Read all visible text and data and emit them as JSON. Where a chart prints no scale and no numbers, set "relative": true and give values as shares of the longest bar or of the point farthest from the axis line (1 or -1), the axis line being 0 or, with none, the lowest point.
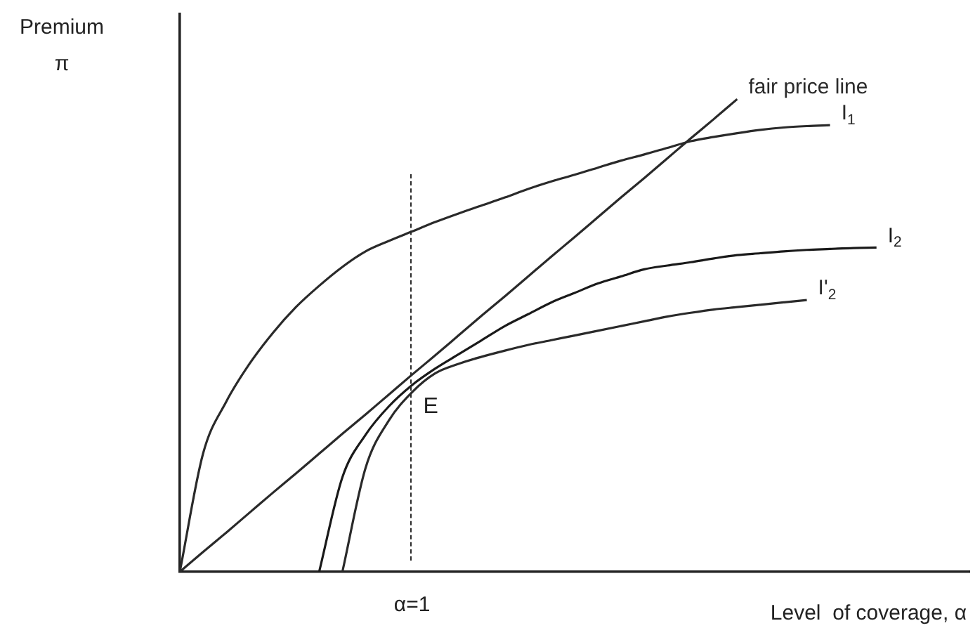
{
  "chart_data": {
    "type": "line",
    "relative": true,
    "xlabel": "Level  of coverage, α",
    "ylabel": "Premium\nπ",
    "categories": [
      null,
      null,
      null,
      null,
      null,
      null,
      null,
      null,
      null,
      null,
      null,
      null,
      null,
      null,
      null,
      null,
      null,
      null,
      null,
      null,
      null,
      null,
      null,
      null,
      null,
      null,
      null,
      null,
      null,
      null,
      null,
      null,
      null,
      null,
      null
    ],
    "series": [
      {
        "name": "fair price line",
        "color": "#2a2a2a",
        "values": [
          0,
          0.042,
          0.083,
          0.125,
          0.167,
          0.208,
          0.25,
          0.292,
          0.333,
          0.375,
          0.417,
          0.458,
          0.5,
          0.542,
          0.583,
          0.625,
          0.667,
          0.708,
          0.75,
          0.792,
          0.833,
          0.875,
          0.917,
          0.958,
          1,
          null,
          null,
          null,
          null,
          null,
          null,
          null,
          null,
          null,
          null
        ]
      },
      {
        "name": "I$_{1}$",
        "color": "#2a2a2a",
        "values": [
          0,
          0.25,
          0.36,
          0.44,
          0.505,
          0.56,
          0.605,
          0.645,
          0.678,
          0.7,
          0.72,
          0.74,
          0.758,
          0.775,
          0.792,
          0.81,
          0.826,
          0.84,
          0.855,
          0.87,
          0.883,
          0.897,
          0.911,
          0.92,
          0.928,
          0.935,
          0.94,
          0.943,
          0.945,
          null,
          null,
          null,
          null,
          null,
          null
        ]
      },
      {
        "name": "I$_{2}$",
        "color": "#1a1a1a",
        "values": [
          null,
          null,
          null,
          null,
          null,
          null,
          0,
          0.2,
          0.29,
          0.35,
          0.395,
          0.43,
          0.46,
          0.49,
          0.52,
          0.545,
          0.57,
          0.59,
          0.61,
          0.625,
          0.64,
          0.648,
          0.655,
          0.663,
          0.67,
          0.674,
          0.678,
          0.681,
          0.683,
          0.685,
          0.686,
          null,
          null,
          null,
          null
        ]
      },
      {
        "name": "I'$_{2}$",
        "color": "#2a2a2a",
        "values": [
          null,
          null,
          null,
          null,
          null,
          null,
          null,
          0,
          0.22,
          0.32,
          0.38,
          0.42,
          0.44,
          0.455,
          0.468,
          0.48,
          0.49,
          0.5,
          0.51,
          0.52,
          0.53,
          0.54,
          0.548,
          0.555,
          0.56,
          0.565,
          0.57,
          0.575,
          null,
          null,
          null,
          null,
          null,
          null,
          null
        ]
      }
    ],
    "annotations": [
      "α=1",
      "E"
    ],
    "grid": false,
    "legend": false,
    "marker": "none",
    "line_style": "solid"
  }
}
